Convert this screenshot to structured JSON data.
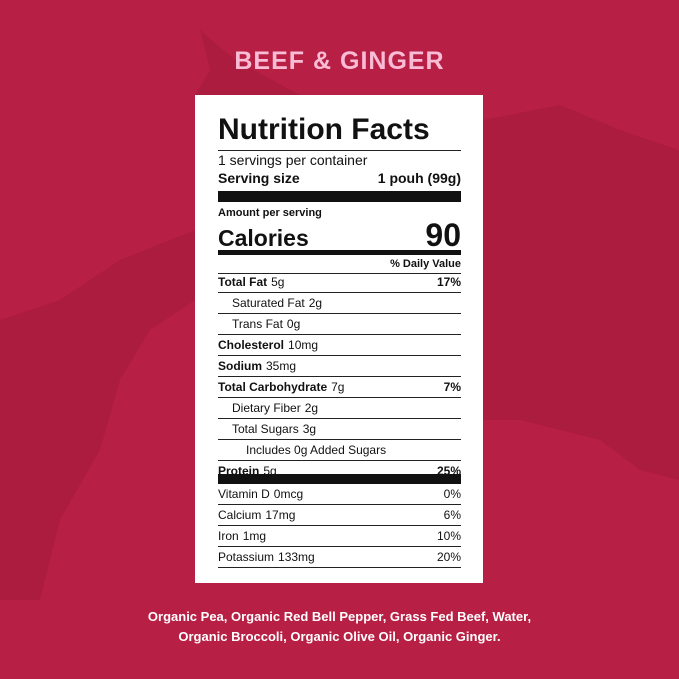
{
  "title": "BEEF & GINGER",
  "label": {
    "heading": "Nutrition Facts",
    "servings": "1 servings per container",
    "serving_size_label": "Serving size",
    "serving_size": "1 pouh (99g)",
    "amount_per_serving": "Amount per serving",
    "calories_label": "Calories",
    "calories": "90",
    "daily_value_header": "% Daily Value",
    "nutrients": [
      {
        "name": "Total Fat",
        "amount": "5g",
        "dv": "17%"
      },
      {
        "name": "Saturated Fat",
        "amount": "2g"
      },
      {
        "name": "Trans Fat",
        "amount": "0g"
      },
      {
        "name": "Cholesterol",
        "amount": "10mg"
      },
      {
        "name": "Sodium",
        "amount": "35mg"
      },
      {
        "name": "Total Carbohydrate",
        "amount": "7g",
        "dv": "7%"
      },
      {
        "name": "Dietary Fiber",
        "amount": "2g"
      },
      {
        "name": "Total Sugars",
        "amount": "3g"
      },
      {
        "name": "Includes 0g Added Sugars"
      },
      {
        "name": "Protein",
        "amount": "5g",
        "dv": "25%"
      }
    ],
    "vitamins": [
      {
        "name": "Vitamin D",
        "amount": "0mcg",
        "dv": "0%"
      },
      {
        "name": "Calcium",
        "amount": "17mg",
        "dv": "6%"
      },
      {
        "name": "Iron",
        "amount": "1mg",
        "dv": "10%"
      },
      {
        "name": "Potassium",
        "amount": "133mg",
        "dv": "20%"
      }
    ]
  },
  "ingredients": [
    "Organic Pea, Organic Red Bell Pepper, Grass Fed Beef, Water,",
    "Organic Broccoli, Organic Olive Oil, Organic Ginger."
  ]
}
